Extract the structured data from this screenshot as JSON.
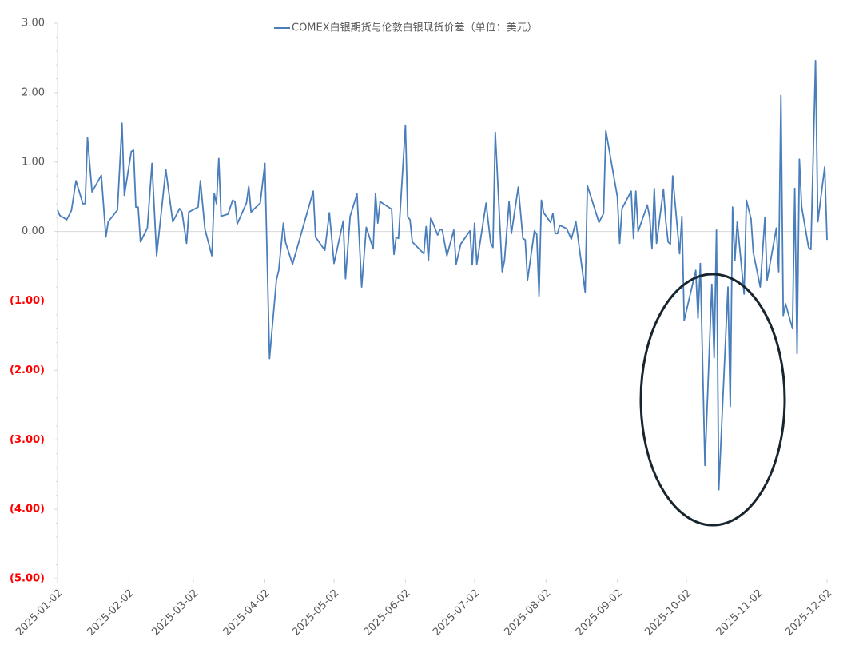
{
  "chart_data": {
    "type": "line",
    "title": "COMEX白银期货与伦敦白银现货价差（单位：美元）",
    "x": [
      "2025-01-02",
      "2025-01-03",
      "2025-01-06",
      "2025-01-08",
      "2025-01-10",
      "2025-01-13",
      "2025-01-14",
      "2025-01-15",
      "2025-01-17",
      "2025-01-21",
      "2025-01-23",
      "2025-01-24",
      "2025-01-28",
      "2025-01-30",
      "2025-01-31",
      "2025-02-03",
      "2025-02-04",
      "2025-02-05",
      "2025-02-06",
      "2025-02-07",
      "2025-02-10",
      "2025-02-12",
      "2025-02-14",
      "2025-02-18",
      "2025-02-21",
      "2025-02-24",
      "2025-02-25",
      "2025-02-27",
      "2025-02-28",
      "2025-03-04",
      "2025-03-05",
      "2025-03-07",
      "2025-03-10",
      "2025-03-11",
      "2025-03-12",
      "2025-03-13",
      "2025-03-14",
      "2025-03-17",
      "2025-03-19",
      "2025-03-20",
      "2025-03-21",
      "2025-03-25",
      "2025-03-26",
      "2025-03-27",
      "2025-03-31",
      "2025-04-02",
      "2025-04-04",
      "2025-04-07",
      "2025-04-08",
      "2025-04-10",
      "2025-04-11",
      "2025-04-14",
      "2025-04-23",
      "2025-04-24",
      "2025-04-28",
      "2025-04-30",
      "2025-05-02",
      "2025-05-06",
      "2025-05-07",
      "2025-05-09",
      "2025-05-12",
      "2025-05-14",
      "2025-05-16",
      "2025-05-19",
      "2025-05-20",
      "2025-05-21",
      "2025-05-22",
      "2025-05-27",
      "2025-05-28",
      "2025-05-29",
      "2025-05-30",
      "2025-06-02",
      "2025-06-03",
      "2025-06-04",
      "2025-06-05",
      "2025-06-10",
      "2025-06-11",
      "2025-06-12",
      "2025-06-13",
      "2025-06-16",
      "2025-06-17",
      "2025-06-18",
      "2025-06-20",
      "2025-06-23",
      "2025-06-24",
      "2025-06-26",
      "2025-06-30",
      "2025-07-01",
      "2025-07-02",
      "2025-07-03",
      "2025-07-07",
      "2025-07-09",
      "2025-07-10",
      "2025-07-11",
      "2025-07-14",
      "2025-07-15",
      "2025-07-17",
      "2025-07-18",
      "2025-07-21",
      "2025-07-23",
      "2025-07-24",
      "2025-07-25",
      "2025-07-28",
      "2025-07-29",
      "2025-07-30",
      "2025-07-31",
      "2025-08-01",
      "2025-08-04",
      "2025-08-05",
      "2025-08-06",
      "2025-08-07",
      "2025-08-08",
      "2025-08-11",
      "2025-08-13",
      "2025-08-15",
      "2025-08-19",
      "2025-08-20",
      "2025-08-25",
      "2025-08-27",
      "2025-08-28",
      "2025-09-02",
      "2025-09-03",
      "2025-09-04",
      "2025-09-08",
      "2025-09-09",
      "2025-09-10",
      "2025-09-11",
      "2025-09-15",
      "2025-09-16",
      "2025-09-17",
      "2025-09-18",
      "2025-09-19",
      "2025-09-22",
      "2025-09-23",
      "2025-09-24",
      "2025-09-25",
      "2025-09-26",
      "2025-09-29",
      "2025-09-30",
      "2025-10-01",
      "2025-10-06",
      "2025-10-07",
      "2025-10-08",
      "2025-10-10",
      "2025-10-13",
      "2025-10-14",
      "2025-10-15",
      "2025-10-16",
      "2025-10-20",
      "2025-10-21",
      "2025-10-22",
      "2025-10-23",
      "2025-10-24",
      "2025-10-27",
      "2025-10-28",
      "2025-10-30",
      "2025-10-31",
      "2025-11-03",
      "2025-11-05",
      "2025-11-06",
      "2025-11-10",
      "2025-11-11",
      "2025-11-12",
      "2025-11-13",
      "2025-11-14",
      "2025-11-17",
      "2025-11-18",
      "2025-11-19",
      "2025-11-20",
      "2025-11-21",
      "2025-11-24",
      "2025-11-25",
      "2025-11-27",
      "2025-11-28",
      "2025-12-01",
      "2025-12-02"
    ],
    "series": [
      {
        "name": "COMEX白银期货与伦敦白银现货价差（单位：美元）",
        "color": "#4a7ebb",
        "values": [
          0.31,
          0.23,
          0.17,
          0.3,
          0.73,
          0.4,
          0.4,
          1.35,
          0.57,
          0.81,
          -0.08,
          0.14,
          0.31,
          1.56,
          0.52,
          1.15,
          1.17,
          0.35,
          0.35,
          -0.15,
          0.05,
          0.98,
          -0.35,
          0.89,
          0.14,
          0.33,
          0.28,
          -0.17,
          0.28,
          0.35,
          0.73,
          0.03,
          -0.35,
          0.55,
          0.4,
          1.05,
          0.22,
          0.25,
          0.45,
          0.43,
          0.11,
          0.41,
          0.65,
          0.28,
          0.41,
          0.98,
          -1.83,
          -0.7,
          -0.56,
          0.12,
          -0.16,
          -0.47,
          0.58,
          -0.08,
          -0.27,
          0.27,
          -0.46,
          0.15,
          -0.68,
          0.22,
          0.54,
          -0.8,
          0.06,
          -0.25,
          0.55,
          0.12,
          0.43,
          0.32,
          -0.33,
          -0.08,
          -0.1,
          1.53,
          0.21,
          0.17,
          -0.15,
          -0.32,
          0.07,
          -0.42,
          0.2,
          -0.05,
          0.03,
          0.02,
          -0.35,
          0.02,
          -0.47,
          -0.18,
          0.01,
          -0.48,
          0.12,
          -0.47,
          0.41,
          -0.16,
          -0.23,
          1.43,
          -0.58,
          -0.42,
          0.43,
          -0.03,
          0.64,
          -0.1,
          -0.12,
          -0.7,
          0.01,
          -0.04,
          -0.93,
          0.45,
          0.27,
          0.13,
          0.26,
          -0.03,
          -0.03,
          0.09,
          0.04,
          -0.11,
          0.14,
          -0.87,
          0.66,
          0.13,
          0.26,
          1.45,
          0.5,
          -0.17,
          0.33,
          0.58,
          -0.1,
          0.58,
          0.0,
          0.38,
          0.21,
          -0.25,
          0.62,
          -0.17,
          0.61,
          0.15,
          -0.15,
          -0.18,
          0.8,
          -0.32,
          0.22,
          -1.28,
          -0.56,
          -1.25,
          -0.46,
          -3.37,
          -0.76,
          -1.82,
          0.02,
          -3.72,
          -0.8,
          -2.52,
          0.35,
          -0.42,
          0.14,
          -0.9,
          0.45,
          0.18,
          -0.3,
          -0.8,
          0.2,
          -0.7,
          0.05,
          -0.58,
          1.96,
          -1.21,
          -1.04,
          -1.4,
          0.62,
          -1.76,
          1.04,
          0.35,
          -0.23,
          -0.26,
          2.46,
          0.14,
          0.93,
          -0.12
        ]
      }
    ],
    "xlim": [
      "2025-01-02",
      "2025-12-02"
    ],
    "xticks": [
      "2025-01-02",
      "2025-02-02",
      "2025-03-02",
      "2025-04-02",
      "2025-05-02",
      "2025-06-02",
      "2025-07-02",
      "2025-08-02",
      "2025-09-02",
      "2025-10-02",
      "2025-11-02",
      "2025-12-02"
    ],
    "ylim": [
      -5,
      3
    ],
    "yticks": [
      {
        "value": 3,
        "label": "3.00"
      },
      {
        "value": 2,
        "label": "2.00"
      },
      {
        "value": 1,
        "label": "1.00"
      },
      {
        "value": 0,
        "label": "0.00"
      },
      {
        "value": -1,
        "label": "(1.00)"
      },
      {
        "value": -2,
        "label": "(2.00)"
      },
      {
        "value": -3,
        "label": "(3.00)"
      },
      {
        "value": -4,
        "label": "(4.00)"
      },
      {
        "value": -5,
        "label": "(5.00)"
      }
    ],
    "negative_tick_color": "#ff0000",
    "grid": false,
    "legend": "top"
  }
}
